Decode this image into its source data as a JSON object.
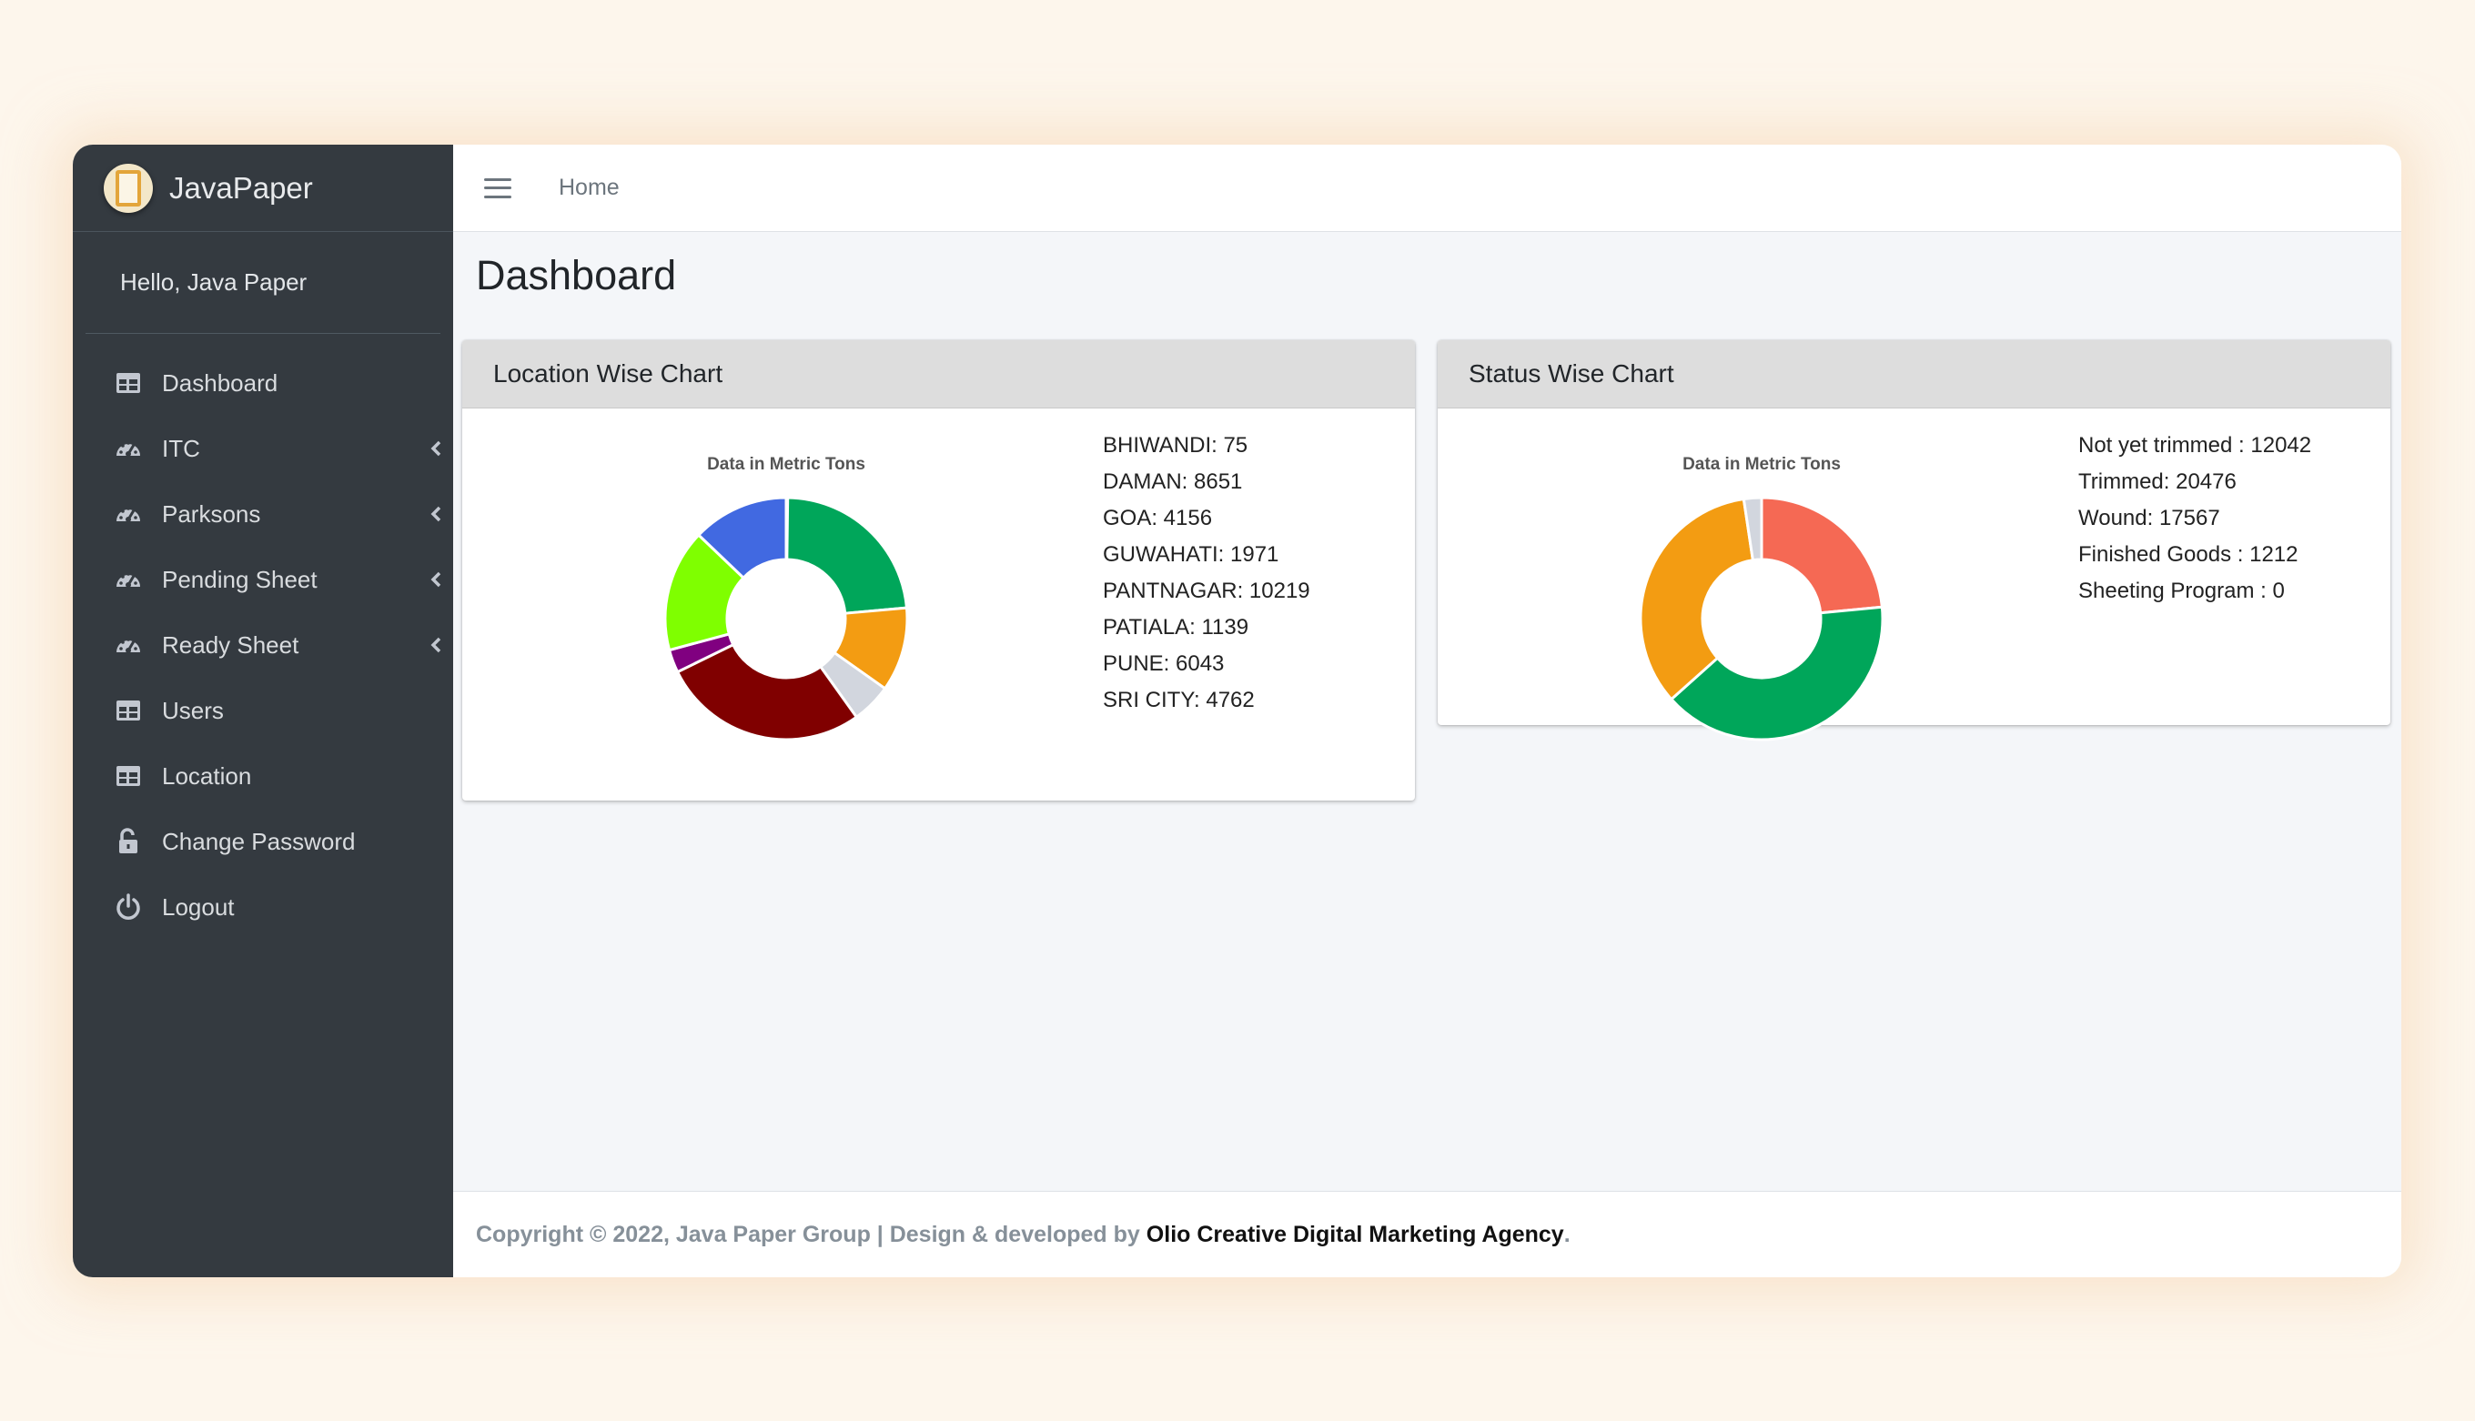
{
  "brand": {
    "name": "JavaPaper"
  },
  "user": {
    "greeting": "Hello, Java Paper"
  },
  "sidebar": {
    "items": [
      {
        "label": "Dashboard",
        "icon": "table-icon",
        "has_submenu": false
      },
      {
        "label": "ITC",
        "icon": "tachometer-icon",
        "has_submenu": true
      },
      {
        "label": "Parksons",
        "icon": "tachometer-icon",
        "has_submenu": true
      },
      {
        "label": "Pending Sheet",
        "icon": "tachometer-icon",
        "has_submenu": true
      },
      {
        "label": "Ready Sheet",
        "icon": "tachometer-icon",
        "has_submenu": true
      },
      {
        "label": "Users",
        "icon": "table-icon",
        "has_submenu": false
      },
      {
        "label": "Location",
        "icon": "table-icon",
        "has_submenu": false
      },
      {
        "label": "Change Password",
        "icon": "unlock-icon",
        "has_submenu": false
      },
      {
        "label": "Logout",
        "icon": "power-icon",
        "has_submenu": false
      }
    ]
  },
  "header": {
    "home_label": "Home"
  },
  "page": {
    "title": "Dashboard"
  },
  "location_card": {
    "title": "Location Wise Chart",
    "legend": [
      "BHIWANDI: 75",
      "DAMAN: 8651",
      "GOA: 4156",
      "GUWAHATI: 1971",
      "PANTNAGAR: 10219",
      "PATIALA: 1139",
      "PUNE: 6043",
      "SRI CITY: 4762"
    ]
  },
  "status_card": {
    "title": "Status Wise Chart",
    "legend": [
      "Not yet trimmed : 12042",
      "Trimmed: 20476",
      "Wound: 17567",
      "Finished Goods : 1212",
      "Sheeting Program : 0"
    ]
  },
  "chart_data": [
    {
      "type": "pie",
      "title": "Data in Metric Tons",
      "categories": [
        "BHIWANDI",
        "DAMAN",
        "GOA",
        "GUWAHATI",
        "PANTNAGAR",
        "PATIALA",
        "PUNE",
        "SRI CITY"
      ],
      "values": [
        75,
        8651,
        4156,
        1971,
        10219,
        1139,
        6043,
        4762
      ],
      "colors": [
        "#f56954",
        "#00a65a",
        "#f39c12",
        "#d2d6de",
        "#800000",
        "#800080",
        "#7fff00",
        "#4169e1"
      ],
      "donut": true
    },
    {
      "type": "pie",
      "title": "Data in Metric Tons",
      "categories": [
        "Not yet trimmed",
        "Trimmed",
        "Wound",
        "Finished Goods",
        "Sheeting Program"
      ],
      "values": [
        12042,
        20476,
        17567,
        1212,
        0
      ],
      "colors": [
        "#f56954",
        "#00a65a",
        "#f39c12",
        "#d2d6de",
        "#00c0ef"
      ],
      "donut": true
    }
  ],
  "footer": {
    "text": "Copyright © 2022, Java Paper Group | Design & developed by",
    "agency": "Olio Creative Digital Marketing Agency",
    "suffix": "."
  }
}
